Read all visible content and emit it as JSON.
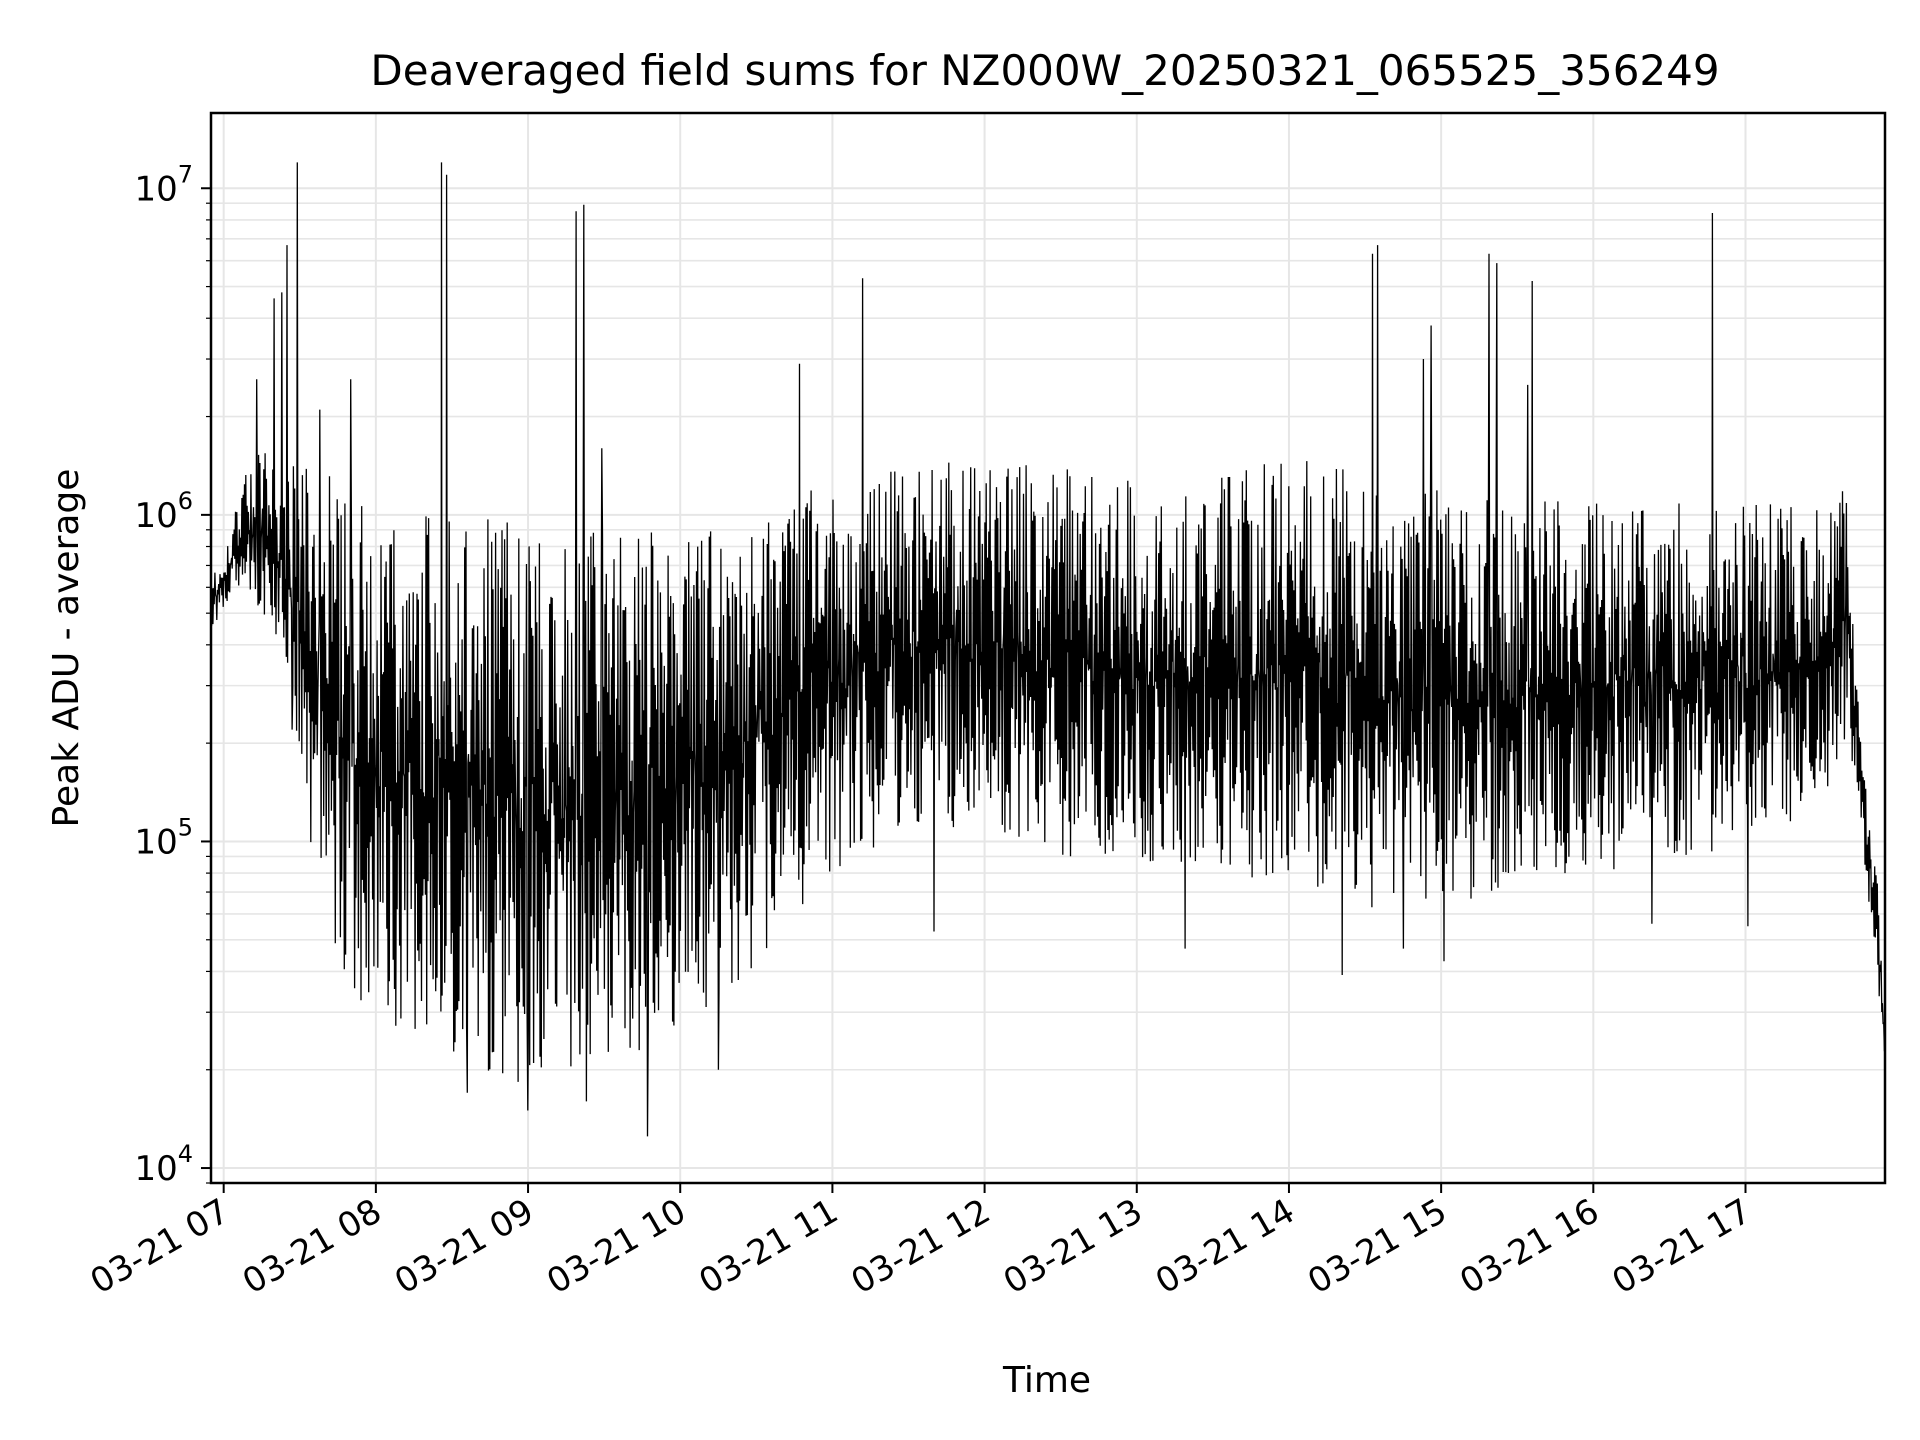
{
  "chart_data": {
    "type": "line",
    "title": "Deaveraged field sums for NZ000W_20250321_065525_356249",
    "xlabel": "Time",
    "ylabel": "Peak ADU - average",
    "yscale": "log",
    "ylim": [
      9000,
      17000000
    ],
    "xlim": [
      "03-21 06:55",
      "03-21 17:55"
    ],
    "grid": true,
    "line_color": "#000000",
    "grid_color": "#e6e6e6",
    "x_tick_labels": [
      "03-21 07",
      "03-21 08",
      "03-21 09",
      "03-21 10",
      "03-21 11",
      "03-21 12",
      "03-21 13",
      "03-21 14",
      "03-21 15",
      "03-21 16",
      "03-21 17"
    ],
    "y_ticks": [
      {
        "value": 10000,
        "base": "10",
        "exp": "4"
      },
      {
        "value": 100000,
        "base": "10",
        "exp": "5"
      },
      {
        "value": 1000000,
        "base": "10",
        "exp": "6"
      },
      {
        "value": 10000000,
        "base": "10",
        "exp": "7"
      }
    ],
    "series": [
      {
        "envelope": [
          {
            "x": "03-21 06:55",
            "low": 430000,
            "high": 650000
          },
          {
            "x": "03-21 07:00",
            "low": 520000,
            "high": 780000
          },
          {
            "x": "03-21 07:08",
            "low": 600000,
            "high": 1300000
          },
          {
            "x": "03-21 07:15",
            "low": 500000,
            "high": 1600000
          },
          {
            "x": "03-21 07:25",
            "low": 300000,
            "high": 1500000
          },
          {
            "x": "03-21 07:35",
            "low": 90000,
            "high": 1500000
          },
          {
            "x": "03-21 07:45",
            "low": 40000,
            "high": 1300000
          },
          {
            "x": "03-21 08:00",
            "low": 28000,
            "high": 1000000
          },
          {
            "x": "03-21 08:20",
            "low": 25000,
            "high": 1000000
          },
          {
            "x": "03-21 08:40",
            "low": 20000,
            "high": 1000000
          },
          {
            "x": "03-21 09:00",
            "low": 17000,
            "high": 1000000
          },
          {
            "x": "03-21 09:20",
            "low": 19000,
            "high": 1000000
          },
          {
            "x": "03-21 09:40",
            "low": 21000,
            "high": 900000
          },
          {
            "x": "03-21 10:00",
            "low": 27000,
            "high": 900000
          },
          {
            "x": "03-21 10:20",
            "low": 35000,
            "high": 1000000
          },
          {
            "x": "03-21 10:40",
            "low": 50000,
            "high": 1200000
          },
          {
            "x": "03-21 11:00",
            "low": 80000,
            "high": 1300000
          },
          {
            "x": "03-21 11:30",
            "low": 110000,
            "high": 1400000
          },
          {
            "x": "03-21 12:00",
            "low": 110000,
            "high": 1500000
          },
          {
            "x": "03-21 12:30",
            "low": 90000,
            "high": 1400000
          },
          {
            "x": "03-21 13:00",
            "low": 85000,
            "high": 1300000
          },
          {
            "x": "03-21 13:30",
            "low": 80000,
            "high": 1300000
          },
          {
            "x": "03-21 14:00",
            "low": 75000,
            "high": 1500000
          },
          {
            "x": "03-21 14:20",
            "low": 65000,
            "high": 1400000
          },
          {
            "x": "03-21 14:40",
            "low": 60000,
            "high": 1200000
          },
          {
            "x": "03-21 15:00",
            "low": 60000,
            "high": 1200000
          },
          {
            "x": "03-21 15:30",
            "low": 75000,
            "high": 1100000
          },
          {
            "x": "03-21 16:00",
            "low": 80000,
            "high": 1100000
          },
          {
            "x": "03-21 16:30",
            "low": 85000,
            "high": 1100000
          },
          {
            "x": "03-21 17:00",
            "low": 100000,
            "high": 1100000
          },
          {
            "x": "03-21 17:30",
            "low": 120000,
            "high": 1100000
          },
          {
            "x": "03-21 17:40",
            "low": 200000,
            "high": 1200000
          },
          {
            "x": "03-21 17:44",
            "low": 150000,
            "high": 300000
          },
          {
            "x": "03-21 17:48",
            "low": 70000,
            "high": 130000
          },
          {
            "x": "03-21 17:52",
            "low": 40000,
            "high": 80000
          },
          {
            "x": "03-21 17:55",
            "low": 17000,
            "high": 30000
          }
        ],
        "spikes": [
          {
            "x": "03-21 07:13",
            "y": 2600000
          },
          {
            "x": "03-21 07:20",
            "y": 4600000
          },
          {
            "x": "03-21 07:23",
            "y": 4800000
          },
          {
            "x": "03-21 07:25",
            "y": 6700000
          },
          {
            "x": "03-21 07:29",
            "y": 12000000
          },
          {
            "x": "03-21 07:38",
            "y": 2100000
          },
          {
            "x": "03-21 07:50",
            "y": 2600000
          },
          {
            "x": "03-21 08:26",
            "y": 12000000
          },
          {
            "x": "03-21 08:28",
            "y": 11000000
          },
          {
            "x": "03-21 09:19",
            "y": 8500000
          },
          {
            "x": "03-21 09:22",
            "y": 8900000
          },
          {
            "x": "03-21 09:29",
            "y": 1600000
          },
          {
            "x": "03-21 10:47",
            "y": 2900000
          },
          {
            "x": "03-21 11:12",
            "y": 5300000
          },
          {
            "x": "03-21 14:33",
            "y": 6300000
          },
          {
            "x": "03-21 14:35",
            "y": 6700000
          },
          {
            "x": "03-21 14:56",
            "y": 3800000
          },
          {
            "x": "03-21 14:53",
            "y": 3000000
          },
          {
            "x": "03-21 15:19",
            "y": 6300000
          },
          {
            "x": "03-21 15:22",
            "y": 5900000
          },
          {
            "x": "03-21 15:36",
            "y": 5200000
          },
          {
            "x": "03-21 15:34",
            "y": 2500000
          },
          {
            "x": "03-21 16:47",
            "y": 8400000
          }
        ],
        "dips": [
          {
            "x": "03-21 07:27",
            "y": 220000
          },
          {
            "x": "03-21 08:36",
            "y": 17000
          },
          {
            "x": "03-21 09:00",
            "y": 15000
          },
          {
            "x": "03-21 09:23",
            "y": 16000
          },
          {
            "x": "03-21 09:47",
            "y": 12500
          },
          {
            "x": "03-21 10:15",
            "y": 20000
          },
          {
            "x": "03-21 11:40",
            "y": 53000
          },
          {
            "x": "03-21 13:19",
            "y": 47000
          },
          {
            "x": "03-21 14:21",
            "y": 39000
          },
          {
            "x": "03-21 14:45",
            "y": 47000
          },
          {
            "x": "03-21 15:01",
            "y": 43000
          },
          {
            "x": "03-21 16:23",
            "y": 56000
          },
          {
            "x": "03-21 17:01",
            "y": 55000
          }
        ]
      }
    ]
  }
}
